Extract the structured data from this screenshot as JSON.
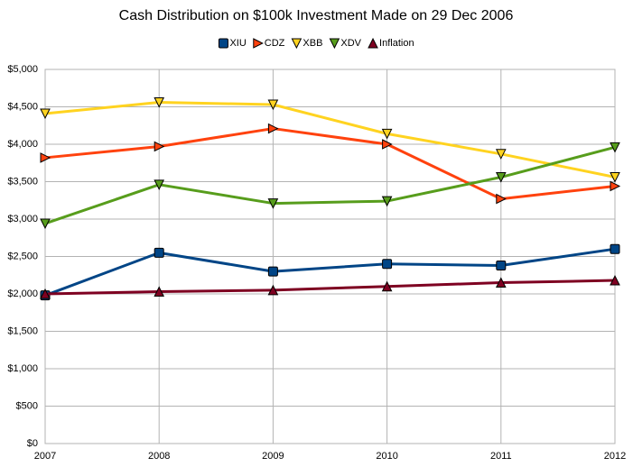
{
  "chart_data": {
    "type": "line",
    "title": "Cash Distribution on $100k Investment Made on 29 Dec 2006",
    "x": [
      2007,
      2008,
      2009,
      2010,
      2011,
      2012
    ],
    "xlim": [
      2007,
      2012
    ],
    "xticks": [
      2007,
      2008,
      2009,
      2010,
      2011,
      2012
    ],
    "ylim": [
      0,
      5000
    ],
    "yticks": [
      {
        "value": 0,
        "label": "$0"
      },
      {
        "value": 500,
        "label": "$500"
      },
      {
        "value": 1000,
        "label": "$1,000"
      },
      {
        "value": 1500,
        "label": "$1,500"
      },
      {
        "value": 2000,
        "label": "$2,000"
      },
      {
        "value": 2500,
        "label": "$2,500"
      },
      {
        "value": 3000,
        "label": "$3,000"
      },
      {
        "value": 3500,
        "label": "$3,500"
      },
      {
        "value": 4000,
        "label": "$4,000"
      },
      {
        "value": 4500,
        "label": "$4,500"
      },
      {
        "value": 5000,
        "label": "$5,000"
      }
    ],
    "grid": true,
    "legend": "top",
    "series": [
      {
        "name": "XIU",
        "color": "#004586",
        "marker": "square",
        "values": [
          1980,
          2550,
          2300,
          2400,
          2380,
          2600
        ]
      },
      {
        "name": "CDZ",
        "color": "#ff420e",
        "marker": "triangle-right",
        "values": [
          3820,
          3970,
          4210,
          4000,
          3270,
          3440
        ]
      },
      {
        "name": "XBB",
        "color": "#ffd320",
        "marker": "triangle-down",
        "values": [
          4410,
          4560,
          4530,
          4140,
          3870,
          3560
        ]
      },
      {
        "name": "XDV",
        "color": "#579d1c",
        "marker": "triangle-down",
        "values": [
          2940,
          3460,
          3210,
          3240,
          3560,
          3960
        ]
      },
      {
        "name": "Inflation",
        "color": "#7e0021",
        "marker": "triangle-up",
        "values": [
          2000,
          2030,
          2050,
          2100,
          2150,
          2180
        ]
      }
    ]
  }
}
